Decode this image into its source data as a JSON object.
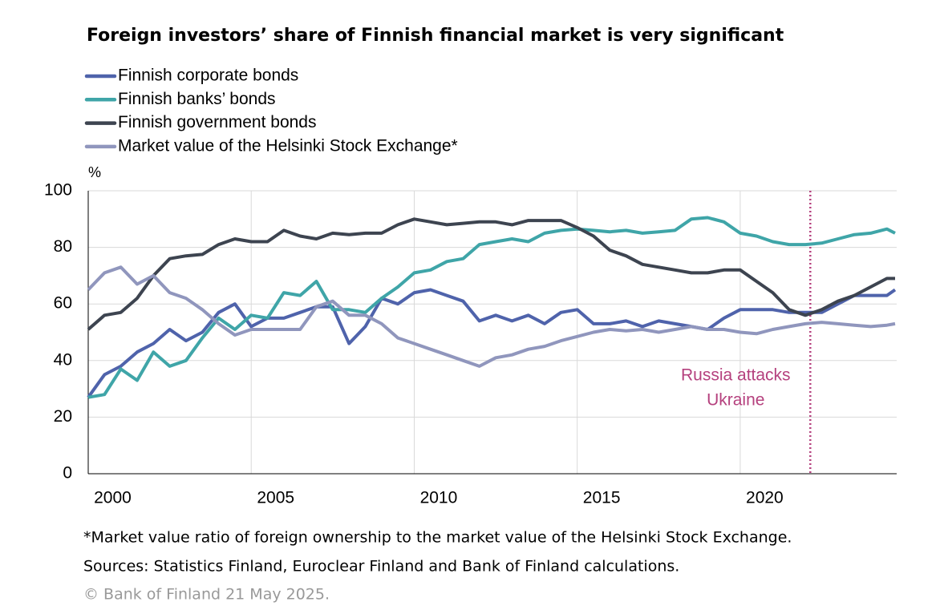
{
  "chart_data": {
    "type": "line",
    "title": "Foreign investors’ share of Finnish financial market is very significant",
    "y_unit": "%",
    "x": [
      2000,
      2000.5,
      2001,
      2001.5,
      2002,
      2002.5,
      2003,
      2003.5,
      2004,
      2004.5,
      2005,
      2005.5,
      2006,
      2006.5,
      2007,
      2007.5,
      2008,
      2008.5,
      2009,
      2009.5,
      2010,
      2010.5,
      2011,
      2011.5,
      2012,
      2012.5,
      2013,
      2013.5,
      2014,
      2014.5,
      2015,
      2015.5,
      2016,
      2016.5,
      2017,
      2017.5,
      2018,
      2018.5,
      2019,
      2019.5,
      2020,
      2020.5,
      2021,
      2021.5,
      2022,
      2022.5,
      2023,
      2023.5,
      2024,
      2024.5,
      2024.75
    ],
    "xlim": [
      2000,
      2024.8
    ],
    "xticks": [
      2000,
      2005,
      2010,
      2015,
      2020
    ],
    "ylim": [
      0,
      100
    ],
    "yticks": [
      0,
      20,
      40,
      60,
      80,
      100
    ],
    "grid": true,
    "series": [
      {
        "name": "Finnish corporate bonds",
        "color": "#4f63ab",
        "values": [
          27,
          35,
          38,
          43,
          46,
          51,
          47,
          50,
          57,
          60,
          52,
          55,
          55,
          57,
          59,
          59,
          46,
          52,
          62,
          60,
          64,
          65,
          63,
          61,
          54,
          56,
          54,
          56,
          53,
          57,
          58,
          53,
          53,
          54,
          52,
          54,
          53,
          52,
          51,
          55,
          58,
          58,
          58,
          57,
          57,
          57,
          60,
          63,
          63,
          63,
          65
        ]
      },
      {
        "name": "Finnish banks’ bonds",
        "color": "#3fa5a8",
        "values": [
          27,
          28,
          37,
          33,
          43,
          38,
          40,
          48,
          55,
          51,
          56,
          55,
          64,
          63,
          68,
          58,
          58,
          57,
          62,
          66,
          71,
          72,
          75,
          76,
          81,
          82,
          83,
          82,
          85,
          86,
          86.5,
          86,
          85.5,
          86,
          85,
          85.5,
          86,
          90,
          90.5,
          89,
          85,
          84,
          82,
          81,
          81,
          81.5,
          83,
          84.5,
          85,
          86.5,
          85
        ]
      },
      {
        "name": "Finnish government bonds",
        "color": "#3d4450",
        "values": [
          51,
          56,
          57,
          62,
          70,
          76,
          77,
          77.5,
          81,
          83,
          82,
          82,
          86,
          84,
          83,
          85,
          84.5,
          85,
          85,
          88,
          90,
          89,
          88,
          88.5,
          89,
          89,
          88,
          89.5,
          89.5,
          89.5,
          87,
          84,
          79,
          77,
          74,
          73,
          72,
          71,
          71,
          72,
          72,
          68,
          64,
          58,
          56,
          58,
          61,
          63,
          66,
          69,
          69
        ]
      },
      {
        "name": "Market value of the Helsinki Stock Exchange*",
        "color": "#9096bd",
        "values": [
          65,
          71,
          73,
          67,
          70,
          64,
          62,
          58,
          53,
          49,
          51,
          51,
          51,
          51,
          59,
          61,
          56,
          56,
          53,
          48,
          46,
          44,
          42,
          40,
          38,
          41,
          42,
          44,
          45,
          47,
          48.5,
          50,
          51,
          50.5,
          51,
          50,
          51,
          52,
          51,
          51,
          50,
          49.5,
          51,
          52,
          53,
          53.5,
          53,
          52.5,
          52,
          52.5,
          53
        ]
      }
    ],
    "annotation": {
      "x": 2022.15,
      "text": [
        "Russia attacks",
        "Ukraine"
      ],
      "color": "#b5417e"
    },
    "footnotes": [
      "*Market value ratio of foreign ownership to the market value of the Helsinki Stock Exchange.",
      "Sources: Statistics Finland, Euroclear Finland and Bank of Finland calculations."
    ],
    "credit": "© Bank of Finland 21 May 2025."
  }
}
